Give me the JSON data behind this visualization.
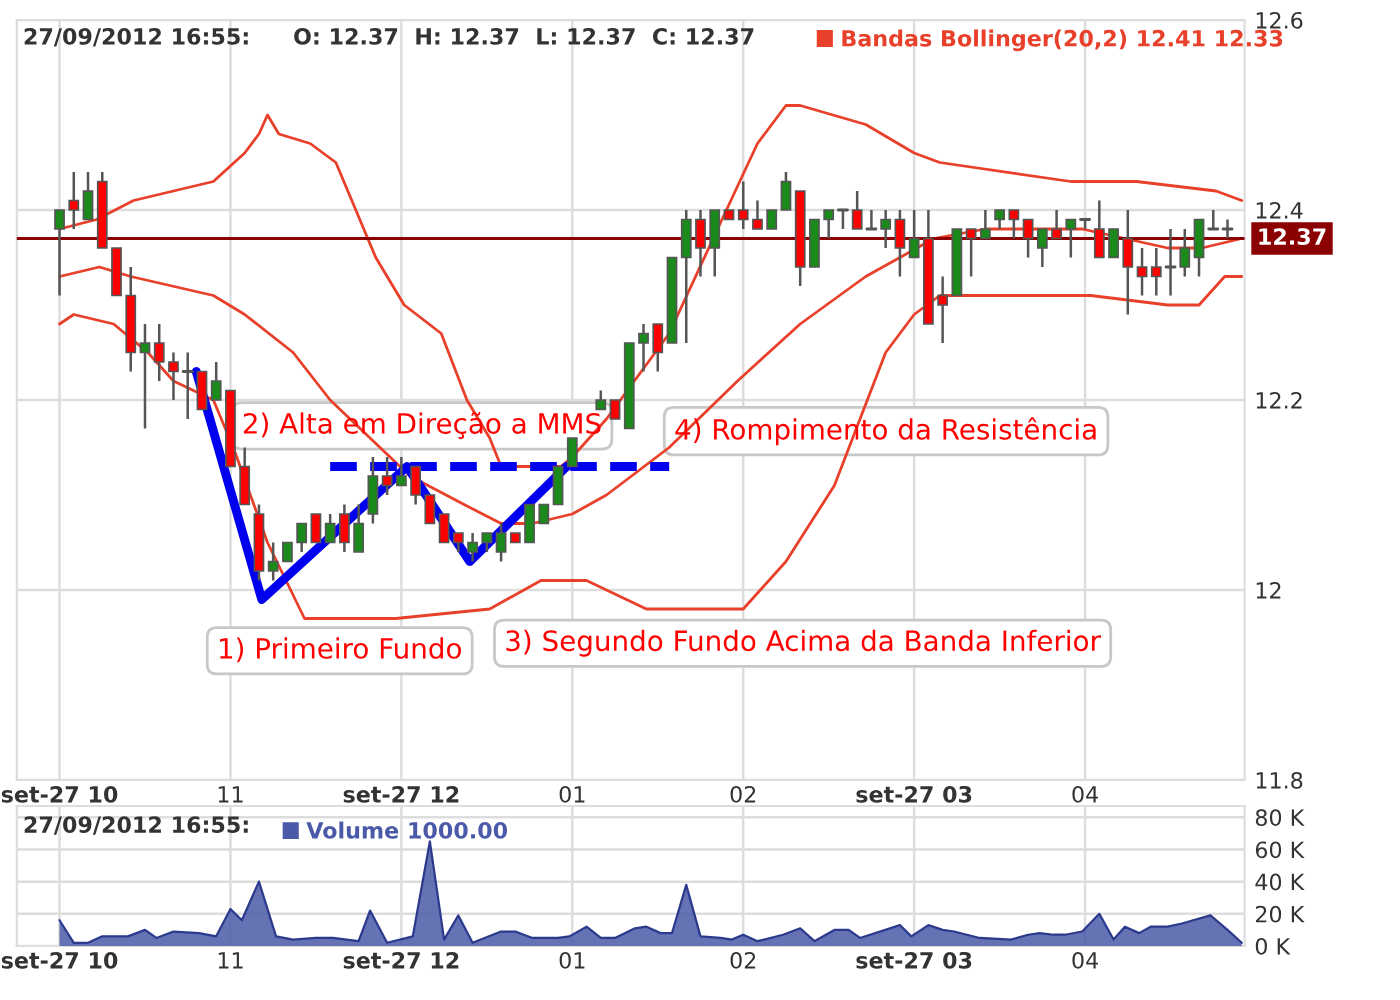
{
  "chart_data": [
    {
      "type": "candlestick",
      "xlim": [
        "2012-09-27T09:45",
        "2012-09-27T16:56"
      ],
      "ylim": [
        11.8,
        12.6
      ],
      "xticks": [
        {
          "value": "2012-09-27T10:00",
          "label": "set-27 10"
        },
        {
          "value": "2012-09-27T11:00",
          "label": "11"
        },
        {
          "value": "2012-09-27T12:00",
          "label": "set-27 12"
        },
        {
          "value": "2012-09-27T13:00",
          "label": "01"
        },
        {
          "value": "2012-09-27T14:00",
          "label": "02"
        },
        {
          "value": "2012-09-27T15:00",
          "label": "set-27 03"
        },
        {
          "value": "2012-09-27T16:00",
          "label": "04"
        }
      ],
      "yticks": [
        11.8,
        12,
        12.2,
        12.4,
        12.6
      ],
      "grid": true,
      "legend": "top",
      "x": [
        "2012-09-27T10:00",
        "2012-09-27T10:05",
        "2012-09-27T10:10",
        "2012-09-27T10:15",
        "2012-09-27T10:20",
        "2012-09-27T10:25",
        "2012-09-27T10:30",
        "2012-09-27T10:35",
        "2012-09-27T10:40",
        "2012-09-27T10:45",
        "2012-09-27T10:50",
        "2012-09-27T10:55",
        "2012-09-27T11:00",
        "2012-09-27T11:05",
        "2012-09-27T11:10",
        "2012-09-27T11:15",
        "2012-09-27T11:20",
        "2012-09-27T11:25",
        "2012-09-27T11:30",
        "2012-09-27T11:35",
        "2012-09-27T11:40",
        "2012-09-27T11:45",
        "2012-09-27T11:50",
        "2012-09-27T11:55",
        "2012-09-27T12:00",
        "2012-09-27T12:05",
        "2012-09-27T12:10",
        "2012-09-27T12:15",
        "2012-09-27T12:20",
        "2012-09-27T12:25",
        "2012-09-27T12:30",
        "2012-09-27T12:35",
        "2012-09-27T12:40",
        "2012-09-27T12:45",
        "2012-09-27T12:50",
        "2012-09-27T12:55",
        "2012-09-27T13:00",
        "2012-09-27T13:10",
        "2012-09-27T13:15",
        "2012-09-27T13:20",
        "2012-09-27T13:25",
        "2012-09-27T13:30",
        "2012-09-27T13:35",
        "2012-09-27T13:40",
        "2012-09-27T13:45",
        "2012-09-27T13:50",
        "2012-09-27T13:55",
        "2012-09-27T14:00",
        "2012-09-27T14:05",
        "2012-09-27T14:10",
        "2012-09-27T14:15",
        "2012-09-27T14:20",
        "2012-09-27T14:25",
        "2012-09-27T14:30",
        "2012-09-27T14:35",
        "2012-09-27T14:40",
        "2012-09-27T14:45",
        "2012-09-27T14:50",
        "2012-09-27T14:55",
        "2012-09-27T15:00",
        "2012-09-27T15:05",
        "2012-09-27T15:10",
        "2012-09-27T15:15",
        "2012-09-27T15:20",
        "2012-09-27T15:25",
        "2012-09-27T15:30",
        "2012-09-27T15:35",
        "2012-09-27T15:40",
        "2012-09-27T15:45",
        "2012-09-27T15:50",
        "2012-09-27T15:55",
        "2012-09-27T16:00",
        "2012-09-27T16:05",
        "2012-09-27T16:10",
        "2012-09-27T16:15",
        "2012-09-27T16:20",
        "2012-09-27T16:25",
        "2012-09-27T16:30",
        "2012-09-27T16:35",
        "2012-09-27T16:40",
        "2012-09-27T16:45",
        "2012-09-27T16:50"
      ],
      "ohlc": [
        [
          12.38,
          12.4,
          12.31,
          12.4
        ],
        [
          12.41,
          12.44,
          12.38,
          12.4
        ],
        [
          12.39,
          12.44,
          12.39,
          12.42
        ],
        [
          12.43,
          12.44,
          12.36,
          12.36
        ],
        [
          12.36,
          12.36,
          12.31,
          12.31
        ],
        [
          12.31,
          12.34,
          12.23,
          12.25
        ],
        [
          12.25,
          12.28,
          12.17,
          12.26
        ],
        [
          12.26,
          12.28,
          12.22,
          12.24
        ],
        [
          12.24,
          12.25,
          12.2,
          12.23
        ],
        [
          12.23,
          12.25,
          12.18,
          12.23
        ],
        [
          12.23,
          12.23,
          12.19,
          12.19
        ],
        [
          12.2,
          12.24,
          12.2,
          12.22
        ],
        [
          12.21,
          12.21,
          12.13,
          12.13
        ],
        [
          12.13,
          12.15,
          12.09,
          12.09
        ],
        [
          12.08,
          12.09,
          12.01,
          12.02
        ],
        [
          12.02,
          12.05,
          12.01,
          12.03
        ],
        [
          12.03,
          12.05,
          12.03,
          12.05
        ],
        [
          12.05,
          12.07,
          12.04,
          12.07
        ],
        [
          12.08,
          12.08,
          12.05,
          12.05
        ],
        [
          12.05,
          12.08,
          12.05,
          12.07
        ],
        [
          12.08,
          12.09,
          12.04,
          12.05
        ],
        [
          12.04,
          12.09,
          12.04,
          12.07
        ],
        [
          12.08,
          12.14,
          12.07,
          12.12
        ],
        [
          12.12,
          12.14,
          12.1,
          12.11
        ],
        [
          12.11,
          12.14,
          12.11,
          12.12
        ],
        [
          12.13,
          12.13,
          12.09,
          12.1
        ],
        [
          12.1,
          12.1,
          12.07,
          12.07
        ],
        [
          12.08,
          12.08,
          12.05,
          12.05
        ],
        [
          12.06,
          12.06,
          12.04,
          12.05
        ],
        [
          12.04,
          12.06,
          12.03,
          12.05
        ],
        [
          12.05,
          12.06,
          12.04,
          12.06
        ],
        [
          12.04,
          12.07,
          12.03,
          12.06
        ],
        [
          12.06,
          12.06,
          12.05,
          12.05
        ],
        [
          12.05,
          12.09,
          12.05,
          12.09
        ],
        [
          12.07,
          12.09,
          12.07,
          12.09
        ],
        [
          12.09,
          12.13,
          12.09,
          12.13
        ],
        [
          12.13,
          12.16,
          12.13,
          12.16
        ],
        [
          12.19,
          12.21,
          12.19,
          12.2
        ],
        [
          12.2,
          12.2,
          12.18,
          12.18
        ],
        [
          12.17,
          12.26,
          12.17,
          12.26
        ],
        [
          12.26,
          12.28,
          12.23,
          12.27
        ],
        [
          12.28,
          12.28,
          12.23,
          12.25
        ],
        [
          12.26,
          12.35,
          12.26,
          12.35
        ],
        [
          12.35,
          12.4,
          12.26,
          12.39
        ],
        [
          12.39,
          12.4,
          12.33,
          12.36
        ],
        [
          12.36,
          12.4,
          12.33,
          12.4
        ],
        [
          12.4,
          12.4,
          12.39,
          12.39
        ],
        [
          12.4,
          12.43,
          12.38,
          12.39
        ],
        [
          12.39,
          12.41,
          12.38,
          12.38
        ],
        [
          12.38,
          12.4,
          12.38,
          12.4
        ],
        [
          12.4,
          12.44,
          12.4,
          12.43
        ],
        [
          12.42,
          12.42,
          12.32,
          12.34
        ],
        [
          12.34,
          12.39,
          12.34,
          12.39
        ],
        [
          12.39,
          12.4,
          12.37,
          12.4
        ],
        [
          12.4,
          12.4,
          12.38,
          12.4
        ],
        [
          12.4,
          12.42,
          12.38,
          12.38
        ],
        [
          12.38,
          12.4,
          12.38,
          12.38
        ],
        [
          12.38,
          12.4,
          12.36,
          12.39
        ],
        [
          12.39,
          12.4,
          12.33,
          12.36
        ],
        [
          12.35,
          12.4,
          12.35,
          12.37
        ],
        [
          12.37,
          12.4,
          12.28,
          12.28
        ],
        [
          12.31,
          12.33,
          12.26,
          12.3
        ],
        [
          12.31,
          12.38,
          12.31,
          12.38
        ],
        [
          12.38,
          12.38,
          12.33,
          12.37
        ],
        [
          12.37,
          12.4,
          12.37,
          12.38
        ],
        [
          12.39,
          12.4,
          12.38,
          12.4
        ],
        [
          12.4,
          12.4,
          12.37,
          12.39
        ],
        [
          12.39,
          12.39,
          12.35,
          12.37
        ],
        [
          12.36,
          12.38,
          12.34,
          12.38
        ],
        [
          12.38,
          12.4,
          12.37,
          12.37
        ],
        [
          12.38,
          12.39,
          12.35,
          12.39
        ],
        [
          12.39,
          12.39,
          12.38,
          12.39
        ],
        [
          12.38,
          12.41,
          12.35,
          12.35
        ],
        [
          12.35,
          12.38,
          12.35,
          12.38
        ],
        [
          12.37,
          12.4,
          12.29,
          12.34
        ],
        [
          12.34,
          12.36,
          12.31,
          12.33
        ],
        [
          12.34,
          12.36,
          12.31,
          12.33
        ],
        [
          12.34,
          12.38,
          12.31,
          12.34
        ],
        [
          12.34,
          12.38,
          12.33,
          12.36
        ],
        [
          12.35,
          12.39,
          12.33,
          12.39
        ],
        [
          12.38,
          12.4,
          12.38,
          12.38
        ],
        [
          12.38,
          12.39,
          12.37,
          12.38
        ]
      ],
      "series": [
        {
          "type": "line",
          "name": "Bandas Bollinger(20,2) 12.41 12.33",
          "color": "#e8402a",
          "x": [
            "2012-09-27T10:00",
            "2012-09-27T10:13",
            "2012-09-27T10:26",
            "2012-09-27T10:40",
            "2012-09-27T10:54",
            "2012-09-27T11:05",
            "2012-09-27T11:10",
            "2012-09-27T11:13",
            "2012-09-27T11:17",
            "2012-09-27T11:28",
            "2012-09-27T11:37",
            "2012-09-27T11:44",
            "2012-09-27T11:51",
            "2012-09-27T12:01",
            "2012-09-27T12:14",
            "2012-09-27T12:23",
            "2012-09-27T12:31",
            "2012-09-27T12:35",
            "2012-09-27T12:46",
            "2012-09-27T12:56",
            "2012-09-27T13:00",
            "2012-09-27T13:12",
            "2012-09-27T13:34",
            "2012-09-27T13:51",
            "2012-09-27T14:05",
            "2012-09-27T14:15",
            "2012-09-27T14:20",
            "2012-09-27T14:43",
            "2012-09-27T15:00",
            "2012-09-27T15:09",
            "2012-09-27T15:55",
            "2012-09-27T16:18",
            "2012-09-27T16:46",
            "2012-09-27T16:55"
          ],
          "values": [
            12.38,
            12.39,
            12.41,
            12.42,
            12.43,
            12.46,
            12.48,
            12.5,
            12.48,
            12.47,
            12.45,
            12.4,
            12.35,
            12.3,
            12.27,
            12.2,
            12.16,
            12.13,
            12.13,
            12.13,
            12.14,
            12.18,
            12.27,
            12.38,
            12.47,
            12.51,
            12.51,
            12.49,
            12.46,
            12.45,
            12.43,
            12.43,
            12.42,
            12.41
          ]
        },
        {
          "type": "line",
          "color": "#e8402a",
          "x": [
            "2012-09-27T10:00",
            "2012-09-27T10:14",
            "2012-09-27T10:25",
            "2012-09-27T10:54",
            "2012-09-27T11:05",
            "2012-09-27T11:22",
            "2012-09-27T11:35",
            "2012-09-27T12:03",
            "2012-09-27T12:22",
            "2012-09-27T12:35",
            "2012-09-27T12:46",
            "2012-09-27T13:00",
            "2012-09-27T13:12",
            "2012-09-27T13:34",
            "2012-09-27T13:58",
            "2012-09-27T14:20",
            "2012-09-27T14:43",
            "2012-09-27T15:07",
            "2012-09-27T15:25",
            "2012-09-27T15:59",
            "2012-09-27T16:29",
            "2012-09-27T16:41",
            "2012-09-27T16:55"
          ],
          "values": [
            12.33,
            12.34,
            12.33,
            12.31,
            12.29,
            12.25,
            12.2,
            12.12,
            12.09,
            12.07,
            12.07,
            12.08,
            12.1,
            12.15,
            12.22,
            12.28,
            12.33,
            12.37,
            12.38,
            12.38,
            12.36,
            12.36,
            12.37
          ]
        },
        {
          "type": "line",
          "color": "#e8402a",
          "x": [
            "2012-09-27T10:00",
            "2012-09-27T10:05",
            "2012-09-27T10:19",
            "2012-09-27T10:31",
            "2012-09-27T10:40",
            "2012-09-27T10:54",
            "2012-09-27T11:01",
            "2012-09-27T11:13",
            "2012-09-27T11:26",
            "2012-09-27T11:58",
            "2012-09-27T12:31",
            "2012-09-27T12:49",
            "2012-09-27T13:05",
            "2012-09-27T13:26",
            "2012-09-27T14:00",
            "2012-09-27T14:15",
            "2012-09-27T14:32",
            "2012-09-27T14:50",
            "2012-09-27T15:00",
            "2012-09-27T15:09",
            "2012-09-27T15:48",
            "2012-09-27T16:02",
            "2012-09-27T16:29",
            "2012-09-27T16:40",
            "2012-09-27T16:49",
            "2012-09-27T16:55"
          ],
          "values": [
            12.28,
            12.29,
            12.28,
            12.25,
            12.22,
            12.2,
            12.15,
            12.05,
            11.97,
            11.97,
            11.98,
            12.01,
            12.01,
            11.98,
            11.98,
            12.03,
            12.11,
            12.25,
            12.29,
            12.31,
            12.31,
            12.31,
            12.3,
            12.3,
            12.33,
            12.33
          ]
        },
        {
          "type": "line",
          "color": "#0000ee",
          "line_style": "solid",
          "x": [
            "2012-09-27T10:48",
            "2012-09-27T11:11",
            "2012-09-27T12:02",
            "2012-09-27T12:24",
            "2012-09-27T12:58"
          ],
          "values": [
            12.23,
            11.99,
            12.13,
            12.03,
            12.13
          ]
        },
        {
          "type": "line",
          "color": "#0000ee",
          "line_style": "dashed",
          "x": [
            "2012-09-27T11:35",
            "2012-09-27T13:34"
          ],
          "values": [
            12.13,
            12.13
          ]
        }
      ],
      "ref_lines": [
        {
          "axis": "y",
          "value": 12.37,
          "label": "12.37",
          "color": "#8b0000"
        }
      ],
      "annotations": [
        "27/09/2012 16:55:",
        "O: 12.37  H: 12.37  L: 12.37  C: 12.37",
        "1) Primeiro Fundo",
        "2) Alta em Direção a MMS",
        "3) Segundo Fundo Acima da Banda Inferior",
        "4) Rompimento da Resistência"
      ]
    },
    {
      "type": "area",
      "xlim": [
        "2012-09-27T09:45",
        "2012-09-27T16:56"
      ],
      "ylim": [
        0,
        87
      ],
      "xticks": [
        {
          "value": "2012-09-27T10:00",
          "label": "set-27 10"
        },
        {
          "value": "2012-09-27T11:00",
          "label": "11"
        },
        {
          "value": "2012-09-27T12:00",
          "label": "set-27 12"
        },
        {
          "value": "2012-09-27T13:00",
          "label": "01"
        },
        {
          "value": "2012-09-27T14:00",
          "label": "02"
        },
        {
          "value": "2012-09-27T15:00",
          "label": "set-27 03"
        },
        {
          "value": "2012-09-27T16:00",
          "label": "04"
        }
      ],
      "yticks": [
        {
          "value": 0,
          "label": "0 K"
        },
        {
          "value": 20,
          "label": "20 K"
        },
        {
          "value": 40,
          "label": "40 K"
        },
        {
          "value": 60,
          "label": "60 K"
        },
        {
          "value": 80,
          "label": "80 K"
        }
      ],
      "grid": true,
      "legend": "top left",
      "annotations": [
        "27/09/2012 16:55:"
      ],
      "series": [
        {
          "name": "Volume 1000.00",
          "color": "#4a5aa8",
          "x": [
            "2012-09-27T10:00",
            "2012-09-27T10:05",
            "2012-09-27T10:10",
            "2012-09-27T10:15",
            "2012-09-27T10:24",
            "2012-09-27T10:30",
            "2012-09-27T10:34",
            "2012-09-27T10:40",
            "2012-09-27T10:49",
            "2012-09-27T10:55",
            "2012-09-27T11:00",
            "2012-09-27T11:04",
            "2012-09-27T11:10",
            "2012-09-27T11:16",
            "2012-09-27T11:22",
            "2012-09-27T11:30",
            "2012-09-27T11:36",
            "2012-09-27T11:45",
            "2012-09-27T11:49",
            "2012-09-27T11:55",
            "2012-09-27T12:04",
            "2012-09-27T12:10",
            "2012-09-27T12:15",
            "2012-09-27T12:20",
            "2012-09-27T12:25",
            "2012-09-27T12:35",
            "2012-09-27T12:40",
            "2012-09-27T12:46",
            "2012-09-27T12:55",
            "2012-09-27T12:59",
            "2012-09-27T13:05",
            "2012-09-27T13:10",
            "2012-09-27T13:15",
            "2012-09-27T13:22",
            "2012-09-27T13:26",
            "2012-09-27T13:31",
            "2012-09-27T13:35",
            "2012-09-27T13:40",
            "2012-09-27T13:45",
            "2012-09-27T13:52",
            "2012-09-27T13:56",
            "2012-09-27T14:00",
            "2012-09-27T14:05",
            "2012-09-27T14:14",
            "2012-09-27T14:20",
            "2012-09-27T14:25",
            "2012-09-27T14:32",
            "2012-09-27T14:37",
            "2012-09-27T14:41",
            "2012-09-27T14:55",
            "2012-09-27T14:59",
            "2012-09-27T15:05",
            "2012-09-27T15:10",
            "2012-09-27T15:14",
            "2012-09-27T15:23",
            "2012-09-27T15:34",
            "2012-09-27T15:40",
            "2012-09-27T15:44",
            "2012-09-27T15:49",
            "2012-09-27T15:53",
            "2012-09-27T15:59",
            "2012-09-27T16:05",
            "2012-09-27T16:10",
            "2012-09-27T16:14",
            "2012-09-27T16:19",
            "2012-09-27T16:23",
            "2012-09-27T16:29",
            "2012-09-27T16:34",
            "2012-09-27T16:44",
            "2012-09-27T16:50",
            "2012-09-27T16:55"
          ],
          "values": [
            16,
            2,
            2,
            6,
            6,
            10,
            5,
            9,
            8,
            6,
            23,
            16,
            40,
            6,
            4,
            5,
            5,
            3,
            22,
            2,
            6,
            65,
            4,
            19,
            2,
            9,
            9,
            5,
            5,
            6,
            12,
            5,
            5,
            11,
            12,
            8,
            8,
            38,
            6,
            5,
            4,
            7,
            3,
            7,
            11,
            3,
            10,
            10,
            5,
            13,
            6,
            13,
            10,
            9,
            5,
            4,
            7,
            8,
            7,
            7,
            9,
            20,
            4,
            12,
            8,
            12,
            12,
            14,
            19,
            10,
            2
          ]
        }
      ]
    }
  ]
}
